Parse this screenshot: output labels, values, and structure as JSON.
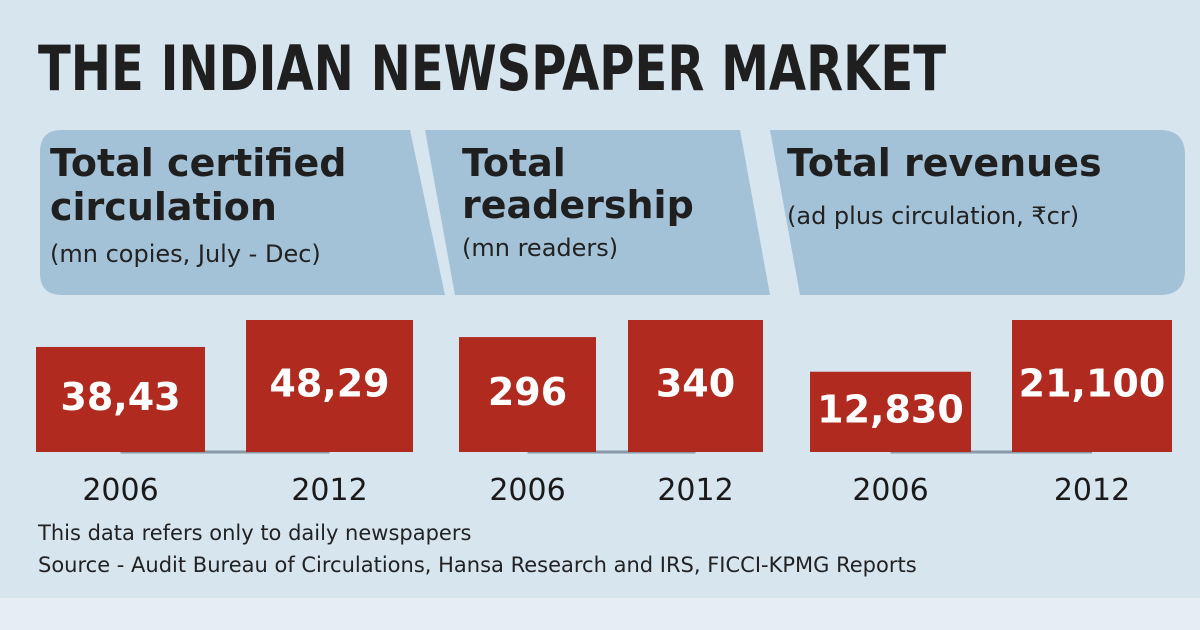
{
  "title": "THE INDIAN NEWSPAPER MARKET",
  "chart_data": [
    {
      "type": "bar",
      "title": [
        "Total certified",
        "circulation"
      ],
      "subtitle": "(mn copies, July - Dec)",
      "categories": [
        "2006",
        "2012"
      ],
      "values": [
        38.43,
        48.29
      ],
      "value_labels": [
        "38,43",
        "48,29"
      ],
      "color": "#b02a1f"
    },
    {
      "type": "bar",
      "title": [
        "Total",
        "readership"
      ],
      "subtitle": "(mn readers)",
      "categories": [
        "2006",
        "2012"
      ],
      "values": [
        296,
        340
      ],
      "color": "#b02a1f"
    },
    {
      "type": "bar",
      "title": [
        "Total revenues"
      ],
      "subtitle": "(ad plus circulation, ₹cr)",
      "categories": [
        "2006",
        "2012"
      ],
      "values": [
        12830,
        21100
      ],
      "value_labels": [
        "12,830",
        "21,100"
      ],
      "color": "#b02a1f"
    }
  ],
  "notes": [
    "This data refers only to daily newspapers",
    "Source - Audit Bureau of Circulations,  Hansa Research and IRS, FICCI-KPMG Reports"
  ]
}
